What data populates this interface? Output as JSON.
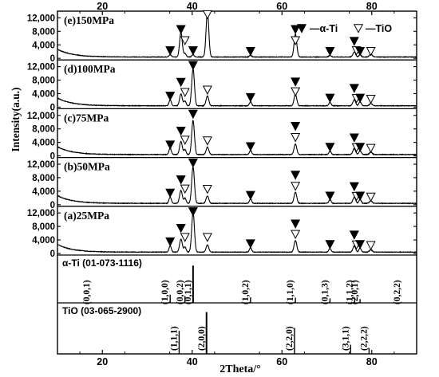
{
  "chart_data": {
    "type": "line",
    "xlabel": "2Theta/°",
    "ylabel": "Intensity(a.u.)",
    "xlim": [
      10,
      90
    ],
    "top_axis_ticks": [
      20,
      40,
      60,
      80
    ],
    "bottom_axis_ticks": [
      20,
      40,
      60,
      80
    ],
    "y_ticks": [
      0,
      4000,
      8000,
      12000
    ],
    "y_tick_labels": [
      "0",
      "4,000",
      "8,000",
      "12,000"
    ],
    "panel_ylim": [
      0,
      13500
    ],
    "legend": {
      "entries": [
        {
          "marker": "filled-triangle-down",
          "label": "—α-Ti"
        },
        {
          "marker": "open-triangle-down",
          "label": "—TiO"
        }
      ],
      "placement": "top-right"
    },
    "colors": {
      "trace": "#000000",
      "axes": "#000000",
      "background": "#ffffff"
    },
    "series": [
      {
        "name": "(e)150MPa",
        "order": 0,
        "noise_floor": 400,
        "peaks": [
          [
            35.1,
            700,
            0.25
          ],
          [
            37.5,
            7300,
            0.3
          ],
          [
            38.4,
            1000,
            0.25
          ],
          [
            40.2,
            700,
            0.25
          ],
          [
            43.4,
            13500,
            0.3
          ],
          [
            53.0,
            500,
            0.25
          ],
          [
            63.0,
            6800,
            0.3
          ],
          [
            70.7,
            500,
            0.25
          ],
          [
            76.1,
            1500,
            0.3
          ],
          [
            77.4,
            700,
            0.25
          ],
          [
            79.8,
            900,
            0.3
          ]
        ],
        "markers": [
          {
            "x": 35.1,
            "y": 2200,
            "type": "alpha"
          },
          {
            "x": 37.5,
            "y": 8500,
            "type": "alpha"
          },
          {
            "x": 38.4,
            "y": 5200,
            "type": "tio"
          },
          {
            "x": 40.2,
            "y": 2200,
            "type": "alpha"
          },
          {
            "x": 43.4,
            "y": 12900,
            "type": "tio"
          },
          {
            "x": 53.0,
            "y": 2000,
            "type": "alpha"
          },
          {
            "x": 63.0,
            "y": 8500,
            "type": "alpha"
          },
          {
            "x": 63.0,
            "y": 5200,
            "type": "tio"
          },
          {
            "x": 70.7,
            "y": 2000,
            "type": "alpha"
          },
          {
            "x": 76.1,
            "y": 5000,
            "type": "alpha"
          },
          {
            "x": 76.6,
            "y": 2200,
            "type": "tio"
          },
          {
            "x": 77.4,
            "y": 2000,
            "type": "alpha"
          },
          {
            "x": 79.8,
            "y": 2000,
            "type": "tio"
          }
        ]
      },
      {
        "name": "(d)100MPa",
        "order": 1,
        "noise_floor": 400,
        "peaks": [
          [
            35.1,
            1800,
            0.25
          ],
          [
            37.5,
            3500,
            0.3
          ],
          [
            38.4,
            1400,
            0.25
          ],
          [
            40.2,
            11000,
            0.3
          ],
          [
            43.4,
            2900,
            0.3
          ],
          [
            53.0,
            1200,
            0.25
          ],
          [
            63.0,
            3400,
            0.3
          ],
          [
            70.7,
            1000,
            0.25
          ],
          [
            76.1,
            1800,
            0.3
          ],
          [
            77.4,
            1200,
            0.25
          ],
          [
            79.8,
            700,
            0.3
          ]
        ],
        "markers": [
          {
            "x": 35.1,
            "y": 3200,
            "type": "alpha"
          },
          {
            "x": 37.5,
            "y": 7300,
            "type": "alpha"
          },
          {
            "x": 38.4,
            "y": 4300,
            "type": "tio"
          },
          {
            "x": 40.2,
            "y": 12300,
            "type": "alpha"
          },
          {
            "x": 43.4,
            "y": 5000,
            "type": "tio"
          },
          {
            "x": 53.0,
            "y": 2800,
            "type": "alpha"
          },
          {
            "x": 63.0,
            "y": 7400,
            "type": "alpha"
          },
          {
            "x": 63.0,
            "y": 4500,
            "type": "tio"
          },
          {
            "x": 70.7,
            "y": 2600,
            "type": "alpha"
          },
          {
            "x": 76.1,
            "y": 5500,
            "type": "alpha"
          },
          {
            "x": 76.6,
            "y": 2500,
            "type": "tio"
          },
          {
            "x": 77.4,
            "y": 2600,
            "type": "alpha"
          },
          {
            "x": 79.8,
            "y": 2300,
            "type": "tio"
          }
        ]
      },
      {
        "name": "(c)75MPa",
        "order": 2,
        "noise_floor": 400,
        "peaks": [
          [
            35.1,
            1900,
            0.25
          ],
          [
            37.5,
            3900,
            0.3
          ],
          [
            38.4,
            1500,
            0.25
          ],
          [
            40.2,
            10100,
            0.3
          ],
          [
            43.4,
            2200,
            0.3
          ],
          [
            53.0,
            1200,
            0.25
          ],
          [
            63.0,
            3100,
            0.3
          ],
          [
            70.7,
            1000,
            0.25
          ],
          [
            76.1,
            1800,
            0.3
          ],
          [
            77.4,
            1200,
            0.25
          ],
          [
            79.8,
            700,
            0.3
          ]
        ],
        "markers": [
          {
            "x": 35.1,
            "y": 3200,
            "type": "alpha"
          },
          {
            "x": 37.5,
            "y": 7300,
            "type": "alpha"
          },
          {
            "x": 38.4,
            "y": 4600,
            "type": "tio"
          },
          {
            "x": 40.2,
            "y": 12300,
            "type": "alpha"
          },
          {
            "x": 43.4,
            "y": 4400,
            "type": "tio"
          },
          {
            "x": 53.0,
            "y": 2700,
            "type": "alpha"
          },
          {
            "x": 63.0,
            "y": 8700,
            "type": "alpha"
          },
          {
            "x": 63.0,
            "y": 5400,
            "type": "tio"
          },
          {
            "x": 70.7,
            "y": 2500,
            "type": "alpha"
          },
          {
            "x": 76.1,
            "y": 5300,
            "type": "alpha"
          },
          {
            "x": 76.6,
            "y": 2400,
            "type": "tio"
          },
          {
            "x": 77.4,
            "y": 2500,
            "type": "alpha"
          },
          {
            "x": 79.8,
            "y": 2200,
            "type": "tio"
          }
        ]
      },
      {
        "name": "(b)50MPa",
        "order": 3,
        "noise_floor": 400,
        "peaks": [
          [
            35.1,
            1900,
            0.25
          ],
          [
            37.5,
            3800,
            0.3
          ],
          [
            38.4,
            1500,
            0.25
          ],
          [
            40.2,
            10800,
            0.3
          ],
          [
            43.4,
            2200,
            0.3
          ],
          [
            53.0,
            1300,
            0.25
          ],
          [
            63.0,
            3300,
            0.3
          ],
          [
            70.7,
            1100,
            0.25
          ],
          [
            76.1,
            1800,
            0.3
          ],
          [
            77.4,
            1200,
            0.25
          ],
          [
            79.8,
            700,
            0.3
          ]
        ],
        "markers": [
          {
            "x": 35.1,
            "y": 3400,
            "type": "alpha"
          },
          {
            "x": 37.5,
            "y": 7300,
            "type": "alpha"
          },
          {
            "x": 38.4,
            "y": 4600,
            "type": "tio"
          },
          {
            "x": 40.2,
            "y": 12300,
            "type": "alpha"
          },
          {
            "x": 43.4,
            "y": 4500,
            "type": "tio"
          },
          {
            "x": 53.0,
            "y": 2700,
            "type": "alpha"
          },
          {
            "x": 63.0,
            "y": 8700,
            "type": "alpha"
          },
          {
            "x": 63.0,
            "y": 5400,
            "type": "tio"
          },
          {
            "x": 70.7,
            "y": 2500,
            "type": "alpha"
          },
          {
            "x": 76.1,
            "y": 5300,
            "type": "alpha"
          },
          {
            "x": 76.6,
            "y": 2400,
            "type": "tio"
          },
          {
            "x": 77.4,
            "y": 2500,
            "type": "alpha"
          },
          {
            "x": 79.8,
            "y": 2200,
            "type": "tio"
          }
        ]
      },
      {
        "name": "(a)25MPa",
        "order": 4,
        "noise_floor": 400,
        "peaks": [
          [
            35.1,
            1900,
            0.25
          ],
          [
            37.5,
            3900,
            0.3
          ],
          [
            38.4,
            1500,
            0.25
          ],
          [
            40.2,
            11800,
            0.3
          ],
          [
            43.4,
            2100,
            0.3
          ],
          [
            53.0,
            1300,
            0.25
          ],
          [
            63.0,
            3400,
            0.3
          ],
          [
            70.7,
            1100,
            0.25
          ],
          [
            76.1,
            1800,
            0.3
          ],
          [
            77.4,
            1200,
            0.25
          ],
          [
            79.8,
            700,
            0.3
          ]
        ],
        "markers": [
          {
            "x": 35.1,
            "y": 3400,
            "type": "alpha"
          },
          {
            "x": 37.5,
            "y": 7400,
            "type": "alpha"
          },
          {
            "x": 38.4,
            "y": 4700,
            "type": "tio"
          },
          {
            "x": 40.2,
            "y": 12300,
            "type": "alpha"
          },
          {
            "x": 43.4,
            "y": 4700,
            "type": "tio"
          },
          {
            "x": 53.0,
            "y": 2800,
            "type": "alpha"
          },
          {
            "x": 63.0,
            "y": 8700,
            "type": "alpha"
          },
          {
            "x": 63.0,
            "y": 5600,
            "type": "tio"
          },
          {
            "x": 70.7,
            "y": 2600,
            "type": "alpha"
          },
          {
            "x": 76.1,
            "y": 5400,
            "type": "alpha"
          },
          {
            "x": 76.6,
            "y": 2500,
            "type": "tio"
          },
          {
            "x": 77.4,
            "y": 2600,
            "type": "alpha"
          },
          {
            "x": 79.8,
            "y": 2300,
            "type": "tio"
          }
        ]
      }
    ],
    "reference_patterns": [
      {
        "name": "α-Ti (01-073-1116)",
        "relative_height_max": 100,
        "lines": [
          {
            "x": 17.6,
            "rel": 0,
            "hkl": "(0,0,1)"
          },
          {
            "x": 35.1,
            "rel": 22,
            "hkl": "(1,0,0)"
          },
          {
            "x": 38.4,
            "rel": 18,
            "hkl": "(0,0,2)"
          },
          {
            "x": 40.2,
            "rel": 100,
            "hkl": "(0,1,1)"
          },
          {
            "x": 53.0,
            "rel": 15,
            "hkl": "(1,0,2)"
          },
          {
            "x": 63.0,
            "rel": 14,
            "hkl": "(1,1,0)"
          },
          {
            "x": 70.7,
            "rel": 12,
            "hkl": "(0,1,3)"
          },
          {
            "x": 76.2,
            "rel": 14,
            "hkl": "(1,1,2)"
          },
          {
            "x": 77.4,
            "rel": 10,
            "hkl": "(2,0,1)"
          },
          {
            "x": 86.8,
            "rel": 1,
            "hkl": "(0,2,2)"
          }
        ]
      },
      {
        "name": "TiO (03-065-2900)",
        "relative_height_max": 100,
        "lines": [
          {
            "x": 37.1,
            "rel": 55,
            "hkl": "(1,1,1)"
          },
          {
            "x": 43.2,
            "rel": 100,
            "hkl": "(2,0,0)"
          },
          {
            "x": 62.8,
            "rel": 62,
            "hkl": "(2,2,0)"
          },
          {
            "x": 75.3,
            "rel": 22,
            "hkl": "(3,1,1)"
          },
          {
            "x": 79.4,
            "rel": 14,
            "hkl": "(2,2,2)"
          }
        ]
      }
    ]
  }
}
